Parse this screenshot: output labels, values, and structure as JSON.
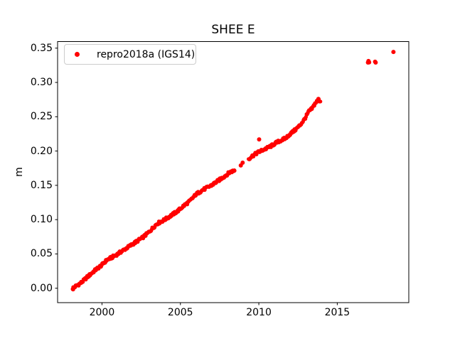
{
  "figure": {
    "background": "#ffffff",
    "axes_edge_color": "#000000"
  },
  "chart_data": {
    "type": "scatter",
    "title": "SHEE E",
    "xlabel": "",
    "ylabel": "m",
    "grid": false,
    "series_color": "#ff0000",
    "legend": {
      "label": "repro2018a (IGS14)",
      "location": "upper left",
      "marker": "red-dot",
      "marker_color": "#ff0000"
    },
    "xlim": [
      1997.17,
      2019.56
    ],
    "ylim": [
      -0.021,
      0.3596
    ],
    "x_ticks": [
      {
        "value": 2000,
        "label": "2000"
      },
      {
        "value": 2005,
        "label": "2005"
      },
      {
        "value": 2010,
        "label": "2010"
      },
      {
        "value": 2015,
        "label": "2015"
      }
    ],
    "y_ticks": [
      {
        "value": 0.0,
        "label": "0.00"
      },
      {
        "value": 0.05,
        "label": "0.05"
      },
      {
        "value": 0.1,
        "label": "0.10"
      },
      {
        "value": 0.15,
        "label": "0.15"
      },
      {
        "value": 0.2,
        "label": "0.20"
      },
      {
        "value": 0.25,
        "label": "0.25"
      },
      {
        "value": 0.3,
        "label": "0.30"
      },
      {
        "value": 0.35,
        "label": "0.35"
      }
    ],
    "series": [
      {
        "name": "repro2018a (IGS14)",
        "color": "#ff0000",
        "marker_radius_px": 2.7,
        "noise_amplitude": 0.002,
        "samples_per_year": 26,
        "trend_segments": [
          {
            "name": "1998-2008 band",
            "knots": [
              [
                1998.13,
                0.0
              ],
              [
                1998.4,
                0.004
              ],
              [
                1998.7,
                0.0085
              ],
              [
                1999.0,
                0.015
              ],
              [
                1999.3,
                0.021
              ],
              [
                1999.6,
                0.027
              ],
              [
                2000.0,
                0.034
              ],
              [
                2000.3,
                0.041
              ],
              [
                2000.6,
                0.0445
              ],
              [
                2001.0,
                0.05
              ],
              [
                2001.4,
                0.056
              ],
              [
                2001.8,
                0.062
              ],
              [
                2002.2,
                0.068
              ],
              [
                2002.6,
                0.074
              ],
              [
                2003.0,
                0.082
              ],
              [
                2003.5,
                0.094
              ],
              [
                2004.0,
                0.1
              ],
              [
                2004.4,
                0.106
              ],
              [
                2004.8,
                0.112
              ],
              [
                2005.2,
                0.12
              ],
              [
                2005.6,
                0.127
              ],
              [
                2006.0,
                0.137
              ],
              [
                2006.4,
                0.143
              ],
              [
                2006.9,
                0.149
              ],
              [
                2007.3,
                0.155
              ],
              [
                2007.8,
                0.163
              ],
              [
                2008.15,
                0.169
              ],
              [
                2008.45,
                0.172
              ]
            ]
          },
          {
            "name": "2009-2014 band",
            "knots": [
              [
                2009.35,
                0.1885
              ],
              [
                2009.6,
                0.193
              ],
              [
                2009.9,
                0.1975
              ],
              [
                2010.2,
                0.201
              ],
              [
                2010.5,
                0.204
              ],
              [
                2010.8,
                0.2075
              ],
              [
                2011.1,
                0.212
              ],
              [
                2011.4,
                0.2155
              ],
              [
                2011.7,
                0.2185
              ],
              [
                2012.0,
                0.225
              ],
              [
                2012.3,
                0.2305
              ],
              [
                2012.6,
                0.237
              ],
              [
                2012.9,
                0.246
              ],
              [
                2013.05,
                0.252
              ],
              [
                2013.2,
                0.258
              ],
              [
                2013.4,
                0.262
              ],
              [
                2013.6,
                0.27
              ],
              [
                2013.8,
                0.2745
              ],
              [
                2013.92,
                0.2725
              ]
            ]
          }
        ],
        "isolated_points": [
          [
            1998.16,
            -0.0015
          ],
          [
            2008.85,
            0.179
          ],
          [
            2008.97,
            0.183
          ],
          [
            2010.02,
            0.217
          ],
          [
            2013.8,
            0.276
          ],
          [
            2016.96,
            0.329
          ],
          [
            2016.99,
            0.3312
          ],
          [
            2017.03,
            0.3293
          ],
          [
            2017.41,
            0.3302
          ],
          [
            2017.45,
            0.329
          ],
          [
            2018.58,
            0.3445
          ]
        ]
      }
    ]
  }
}
